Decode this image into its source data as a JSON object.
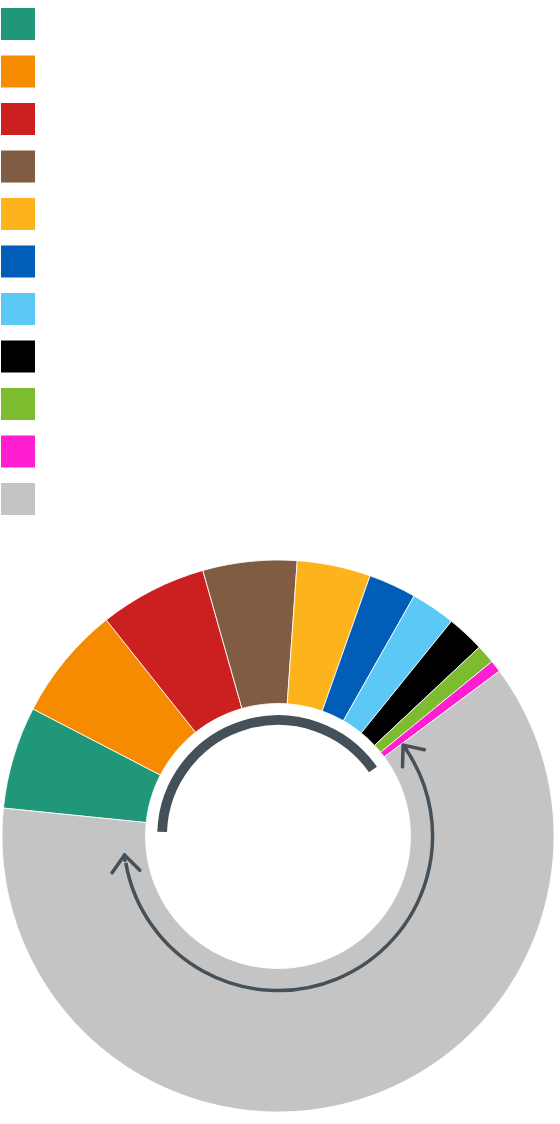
{
  "chart_data": {
    "type": "donut",
    "categories": [
      null,
      null,
      null,
      null,
      null,
      null,
      null,
      null,
      null,
      null,
      null
    ],
    "values": [
      6.0,
      6.7,
      6.3,
      5.5,
      4.3,
      2.8,
      2.6,
      2.2,
      1.1,
      0.7,
      61.8
    ],
    "colors": [
      "#21977a",
      "#f68a00",
      "#cc1f1f",
      "#805c43",
      "#fdb31b",
      "#005eb8",
      "#5bc8f5",
      "#000000",
      "#7bbd2e",
      "#ff1fd0",
      "#c4c4c4"
    ]
  }
}
